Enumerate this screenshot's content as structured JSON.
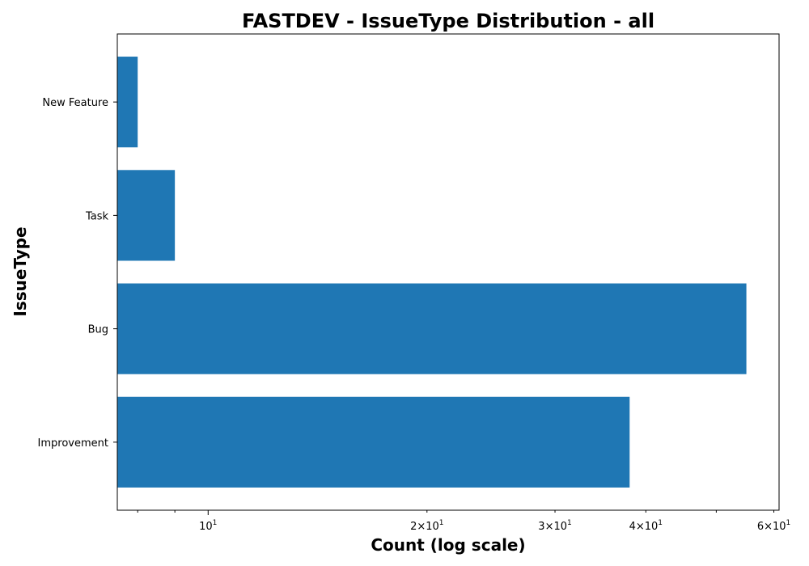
{
  "chart_data": {
    "type": "bar",
    "orientation": "horizontal",
    "title": "FASTDEV - IssueType Distribution - all",
    "xlabel": "Count (log scale)",
    "ylabel": "IssueType",
    "x_scale": "log",
    "xlim": [
      7.5,
      61
    ],
    "categories": [
      "Improvement",
      "Bug",
      "Task",
      "New Feature"
    ],
    "values": [
      38,
      55,
      9,
      8
    ],
    "bar_color": "#1f77b4",
    "grid": false,
    "legend": "none",
    "major_ticks": [
      {
        "value": 10,
        "base": "10",
        "exp": "1"
      }
    ],
    "minor_ticks": [
      {
        "value": 20,
        "coef": "2",
        "base": "10",
        "exp": "1"
      },
      {
        "value": 30,
        "coef": "3",
        "base": "10",
        "exp": "1"
      },
      {
        "value": 40,
        "coef": "4",
        "base": "10",
        "exp": "1"
      },
      {
        "value": 60,
        "coef": "6",
        "base": "10",
        "exp": "1"
      }
    ],
    "unlabeled_minor_ticks": [
      8,
      9,
      50
    ]
  }
}
